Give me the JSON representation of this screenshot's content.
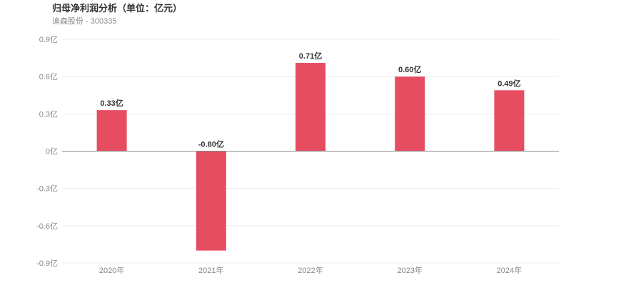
{
  "header": {
    "title": "归母净利润分析（单位：亿元）",
    "subtitle": "迪森股份 - 300335"
  },
  "colors": {
    "bar": "#e64d61",
    "grid": "#ececec",
    "zero_line": "#888888"
  },
  "chart_data": {
    "type": "bar",
    "categories": [
      "2020年",
      "2021年",
      "2022年",
      "2023年",
      "2024年"
    ],
    "values": [
      0.33,
      -0.8,
      0.71,
      0.6,
      0.49
    ],
    "data_labels": [
      "0.33亿",
      "-0.80亿",
      "0.71亿",
      "0.60亿",
      "0.49亿"
    ],
    "y_ticks": [
      0.9,
      0.6,
      0.3,
      0,
      -0.3,
      -0.6,
      -0.9
    ],
    "y_tick_labels": [
      "0.9亿",
      "0.6亿",
      "0.3亿",
      "0亿",
      "-0.3亿",
      "-0.6亿",
      "-0.9亿"
    ],
    "ylim": [
      -0.9,
      0.9
    ],
    "grid": true,
    "legend": "none"
  }
}
